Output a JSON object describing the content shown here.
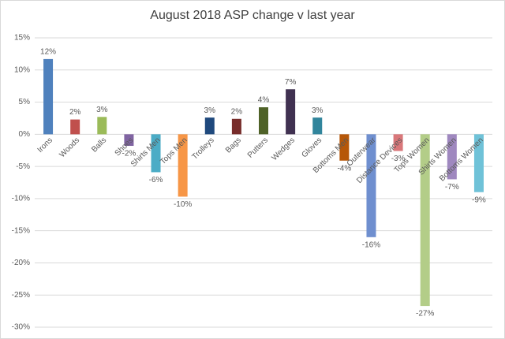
{
  "chart_data": {
    "type": "bar",
    "title": "August 2018 ASP change v last year",
    "categories": [
      "Irons",
      "Woods",
      "Balls",
      "Shoes",
      "Shirts Men",
      "Tops Men",
      "Trolleys",
      "Bags",
      "Putters",
      "Wedges",
      "Gloves",
      "Bottoms Men",
      "Outerwear",
      "Distance Devices",
      "Tops Women",
      "Shirts Women",
      "Bottoms Women"
    ],
    "values": [
      11.7,
      2.3,
      2.7,
      -1.8,
      -5.9,
      -9.7,
      2.6,
      2.4,
      4.2,
      7.0,
      2.6,
      -4.1,
      -16.0,
      -2.6,
      -26.7,
      -7.0,
      -9.0
    ],
    "value_labels": [
      "12%",
      "2%",
      "3%",
      "-2%",
      "-6%",
      "-10%",
      "3%",
      "2%",
      "4%",
      "7%",
      "3%",
      "-4%",
      "-16%",
      "-3%",
      "-27%",
      "-7%",
      "-9%"
    ],
    "colors": [
      "#4f81bd",
      "#c0504d",
      "#9bbb59",
      "#8064a2",
      "#4bacc6",
      "#f79646",
      "#1f497d",
      "#772c2a",
      "#4f6228",
      "#403151",
      "#31859c",
      "#b65708",
      "#6f8fcf",
      "#d9777a",
      "#b3cd88",
      "#9f88bf",
      "#6fc2d8"
    ],
    "ylim": [
      -30,
      15
    ],
    "yticks": [
      {
        "value": -30,
        "label": "-30%"
      },
      {
        "value": -25,
        "label": "-25%"
      },
      {
        "value": -20,
        "label": "-20%"
      },
      {
        "value": -15,
        "label": "-15%"
      },
      {
        "value": -10,
        "label": "-10%"
      },
      {
        "value": -5,
        "label": "-5%"
      },
      {
        "value": 0,
        "label": "0%"
      },
      {
        "value": 5,
        "label": "5%"
      },
      {
        "value": 10,
        "label": "10%"
      },
      {
        "value": 15,
        "label": "15%"
      }
    ],
    "grid": true
  }
}
